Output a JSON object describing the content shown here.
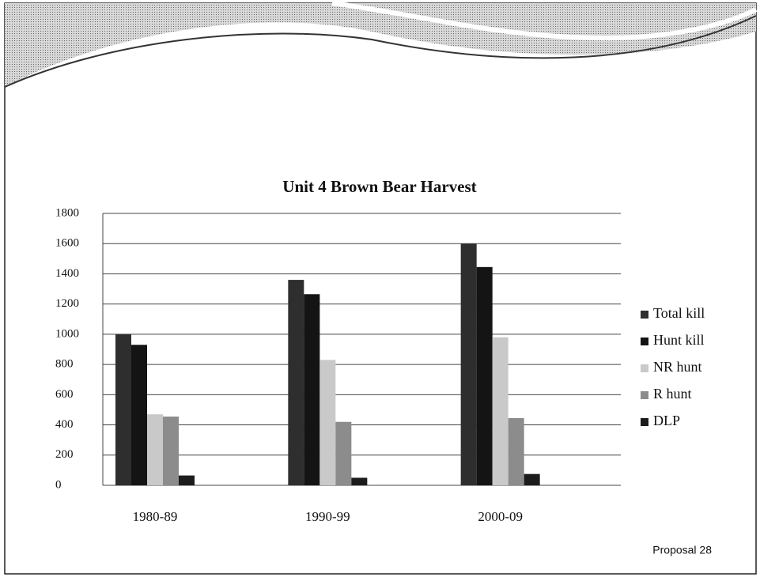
{
  "chart_data": {
    "type": "bar",
    "title": "Unit 4 Brown Bear Harvest",
    "categories": [
      "1980-89",
      "1990-99",
      "2000-09"
    ],
    "series": [
      {
        "name": "Total kill",
        "color": "#2e2e2e",
        "values": [
          1000,
          1360,
          1600
        ]
      },
      {
        "name": "Hunt kill",
        "color": "#141414",
        "values": [
          930,
          1265,
          1445
        ]
      },
      {
        "name": "NR hunt",
        "color": "#c9c9c9",
        "values": [
          470,
          830,
          980
        ]
      },
      {
        "name": "R hunt",
        "color": "#8c8c8c",
        "values": [
          455,
          420,
          445
        ]
      },
      {
        "name": "DLP",
        "color": "#1c1c1c",
        "values": [
          65,
          50,
          75
        ]
      }
    ],
    "ylim": [
      0,
      1800
    ],
    "yticks": [
      0,
      200,
      400,
      600,
      800,
      1000,
      1200,
      1400,
      1600,
      1800
    ],
    "grid": true,
    "legend": "right"
  },
  "footer": "Proposal 28"
}
